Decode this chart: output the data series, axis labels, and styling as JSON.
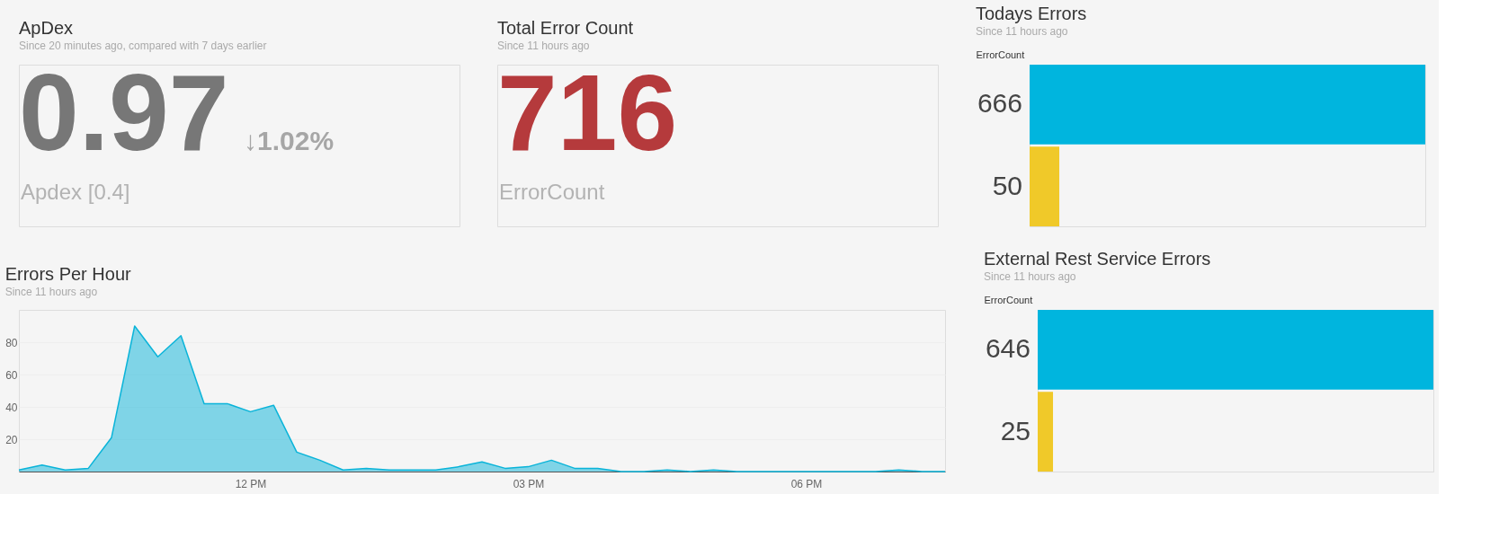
{
  "chart_data": [
    {
      "type": "other",
      "title": "ApDex",
      "subtitle": "Since 20 minutes ago, compared with 7 days earlier",
      "annotations": [
        "0.97",
        "↓1.02%",
        "Apdex [0.4]"
      ],
      "colors": [
        "#777777",
        "#a6a6a6",
        "#b3b3b3"
      ]
    },
    {
      "type": "other",
      "title": "Total Error Count",
      "subtitle": "Since 11 hours ago",
      "annotations": [
        "716",
        "ErrorCount"
      ],
      "colors": [
        "#b53a3c",
        "#b3b3b3"
      ]
    },
    {
      "type": "bar",
      "orientation": "horizontal",
      "title": "Todays Errors",
      "subtitle": "Since 11 hours ago",
      "ylabel": "ErrorCount",
      "categories": [
        null,
        null
      ],
      "values": [
        666,
        50
      ],
      "colors": [
        "#00b5de",
        "#f0c929"
      ],
      "data_labels": true
    },
    {
      "type": "area",
      "title": "Errors Per Hour",
      "subtitle": "Since 11 hours ago",
      "categories": [
        null,
        null,
        null,
        null,
        null,
        null,
        null,
        null,
        null,
        null,
        "12 PM",
        null,
        null,
        null,
        null,
        null,
        null,
        null,
        null,
        null,
        null,
        null,
        "03 PM",
        null,
        null,
        null,
        null,
        null,
        null,
        null,
        null,
        null,
        null,
        null,
        "06 PM",
        null,
        null,
        null,
        null,
        null,
        null
      ],
      "series": [
        {
          "color": "#0ab4d9",
          "values": [
            1,
            4,
            1,
            2,
            21,
            90,
            71,
            84,
            42,
            42,
            37,
            41,
            12,
            7,
            1,
            2,
            1,
            1,
            1,
            3,
            6,
            2,
            3,
            7,
            2,
            2,
            0,
            0,
            1,
            0,
            1,
            0,
            0,
            0,
            0,
            0,
            0,
            0,
            1,
            0,
            0
          ]
        }
      ],
      "ylim": [
        0,
        100
      ],
      "yticks": [
        20,
        40,
        60,
        80
      ],
      "grid": "y"
    },
    {
      "type": "bar",
      "orientation": "horizontal",
      "title": "External Rest Service Errors",
      "subtitle": "Since 11 hours ago",
      "ylabel": "ErrorCount",
      "categories": [
        null,
        null
      ],
      "values": [
        646,
        25
      ],
      "colors": [
        "#00b5de",
        "#f0c929"
      ],
      "data_labels": true
    }
  ]
}
